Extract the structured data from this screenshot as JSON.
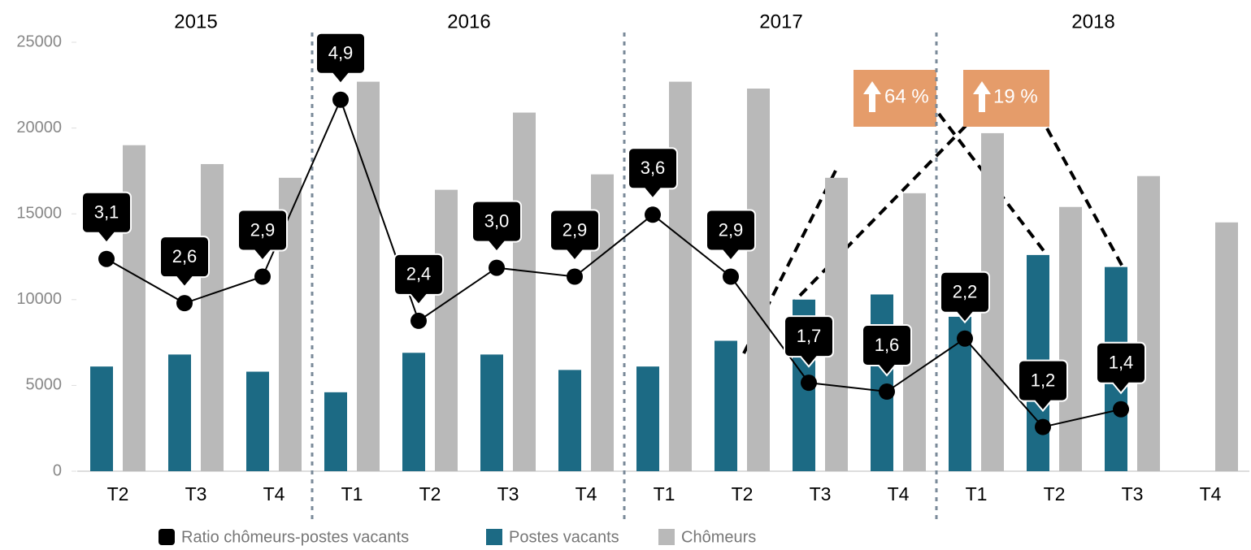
{
  "chart_data": {
    "type": "bar",
    "years": [
      "2015",
      "2016",
      "2017",
      "2018"
    ],
    "categories": [
      "T2",
      "T3",
      "T4",
      "T1",
      "T2",
      "T3",
      "T4",
      "T1",
      "T2",
      "T3",
      "T4",
      "T1",
      "T2",
      "T3",
      "T4"
    ],
    "series": [
      {
        "name": "Ratio chômeurs-postes vacants",
        "type": "line",
        "axis": "y2",
        "color": "#000000",
        "values": [
          3.1,
          2.6,
          2.9,
          4.9,
          2.4,
          3.0,
          2.9,
          3.6,
          2.9,
          1.7,
          1.6,
          2.2,
          1.2,
          1.4,
          null
        ],
        "value_labels": [
          "3,1",
          "2,6",
          "2,9",
          "4,9",
          "2,4",
          "3,0",
          "2,9",
          "3,6",
          "2,9",
          "1,7",
          "1,6",
          "2,2",
          "1,2",
          "1,4",
          null
        ]
      },
      {
        "name": "Postes vacants",
        "type": "bar",
        "color": "#1c6a84",
        "values": [
          6100,
          6800,
          5800,
          4600,
          6900,
          6800,
          5900,
          6100,
          7600,
          10000,
          10300,
          9000,
          12600,
          11900,
          null
        ]
      },
      {
        "name": "Chômeurs",
        "type": "bar",
        "color": "#b9b9b9",
        "values": [
          19000,
          17900,
          17100,
          22700,
          16400,
          20900,
          17300,
          22700,
          22300,
          17100,
          16200,
          19700,
          15400,
          17200,
          14500
        ]
      }
    ],
    "ylim": [
      0,
      25000
    ],
    "yticks": [
      0,
      5000,
      10000,
      15000,
      20000,
      25000
    ],
    "y2lim": [
      0.7,
      5.55
    ],
    "annotations": [
      "64 %",
      "19 %"
    ]
  }
}
